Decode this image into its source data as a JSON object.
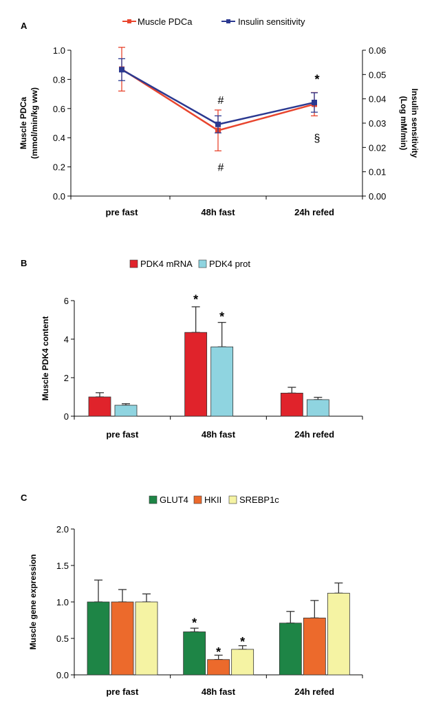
{
  "chart_data": [
    {
      "panel": "A",
      "type": "line",
      "categories": [
        "pre fast",
        "48h fast",
        "24h refed"
      ],
      "series": [
        {
          "name": "Muscle PDCa",
          "axis": "left",
          "color": "#e8452e",
          "values": [
            0.87,
            0.45,
            0.63
          ],
          "err": [
            0.15,
            0.14,
            0.08
          ]
        },
        {
          "name": "Insulin sensitivity",
          "axis": "right",
          "color": "#2b3990",
          "values": [
            0.052,
            0.0295,
            0.0385
          ],
          "err": [
            0.0045,
            0.0035,
            0.004
          ]
        }
      ],
      "ylabel": [
        "Muscle PDCa",
        "(mmol/min/kg ww)"
      ],
      "y2label": [
        "Insulin sensitivity",
        "(Log mM/min)"
      ],
      "ylim": [
        0,
        1.0
      ],
      "y2lim": [
        0,
        0.06
      ],
      "yticks": [
        "0.0",
        "0.2",
        "0.4",
        "0.6",
        "0.8",
        "1.0"
      ],
      "y2ticks": [
        "0.00",
        "0.01",
        "0.02",
        "0.03",
        "0.04",
        "0.05",
        "0.06"
      ],
      "annotations": [
        {
          "text": "#",
          "category": 1,
          "value": 0.66
        },
        {
          "text": "#",
          "category": 1,
          "value": 0.2
        },
        {
          "text": "*",
          "category": 2,
          "value": 0.8
        },
        {
          "text": "§",
          "category": 2,
          "value": 0.4
        }
      ]
    },
    {
      "panel": "B",
      "type": "bar",
      "categories": [
        "pre fast",
        "48h fast",
        "24h refed"
      ],
      "series": [
        {
          "name": "PDK4 mRNA",
          "color": "#e0232b",
          "values": [
            1.0,
            4.35,
            1.2
          ],
          "err": [
            0.22,
            1.33,
            0.3
          ]
        },
        {
          "name": "PDK4 prot",
          "color": "#8fd4e0",
          "values": [
            0.57,
            3.6,
            0.86
          ],
          "err": [
            0.08,
            1.27,
            0.12
          ]
        }
      ],
      "ylabel": "Muscle PDK4 content",
      "ylim": [
        0,
        6
      ],
      "yticks": [
        "0",
        "2",
        "4",
        "6"
      ],
      "annotations": [
        {
          "text": "*",
          "category": 1,
          "series": 0,
          "value": 6.2
        },
        {
          "text": "*",
          "category": 1,
          "series": 1,
          "value": 5.3
        }
      ]
    },
    {
      "panel": "C",
      "type": "bar",
      "categories": [
        "pre fast",
        "48h fast",
        "24h refed"
      ],
      "series": [
        {
          "name": "GLUT4",
          "color": "#1e8546",
          "values": [
            1.0,
            0.59,
            0.71
          ],
          "err": [
            0.3,
            0.05,
            0.16
          ]
        },
        {
          "name": "HKII",
          "color": "#ec6a2c",
          "values": [
            1.0,
            0.21,
            0.78
          ],
          "err": [
            0.17,
            0.06,
            0.24
          ]
        },
        {
          "name": "SREBP1c",
          "color": "#f5f3a3",
          "values": [
            1.0,
            0.35,
            1.12
          ],
          "err": [
            0.11,
            0.05,
            0.14
          ]
        }
      ],
      "ylabel": "Muscle gene expression",
      "ylim": [
        0,
        2.0
      ],
      "yticks": [
        "0.0",
        "0.5",
        "1.0",
        "1.5",
        "2.0"
      ],
      "annotations": [
        {
          "text": "*",
          "category": 1,
          "series": 0,
          "value": 0.75
        },
        {
          "text": "*",
          "category": 1,
          "series": 1,
          "value": 0.35
        },
        {
          "text": "*",
          "category": 1,
          "series": 2,
          "value": 0.49
        }
      ]
    }
  ]
}
